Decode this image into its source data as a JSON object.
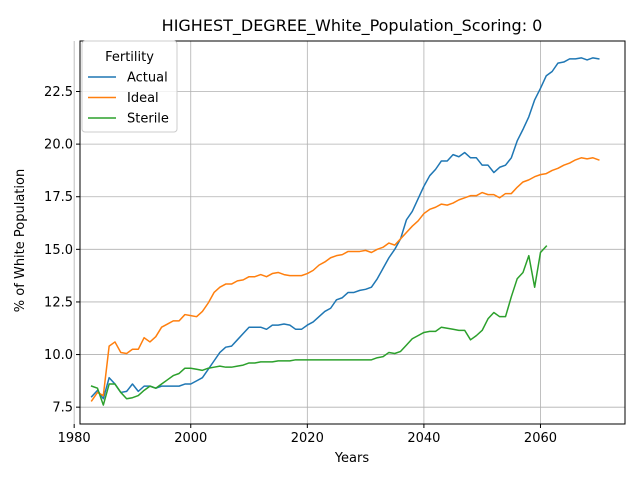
{
  "chart_data": {
    "type": "line",
    "title": "HIGHEST_DEGREE_White_Population_Scoring: 0",
    "xlabel": "Years",
    "ylabel": "% of White Population",
    "xlim": [
      1981,
      2074.5
    ],
    "ylim": [
      6.7,
      24.9
    ],
    "xticks": [
      1980,
      2000,
      2020,
      2040,
      2060
    ],
    "yticks": [
      7.5,
      10.0,
      12.5,
      15.0,
      17.5,
      20.0,
      22.5
    ],
    "xtick_labels": [
      "1980",
      "2000",
      "2020",
      "2040",
      "2060"
    ],
    "ytick_labels": [
      "7.5",
      "10.0",
      "12.5",
      "15.0",
      "17.5",
      "20.0",
      "22.5"
    ],
    "grid": true,
    "legend": {
      "title": "Fertility",
      "position": "top-left"
    },
    "series": [
      {
        "name": "Actual",
        "color": "#1f77b4",
        "x": [
          1983,
          1984,
          1985,
          1986,
          1987,
          1988,
          1989,
          1990,
          1991,
          1992,
          1993,
          1994,
          1995,
          1996,
          1997,
          1998,
          1999,
          2000,
          2001,
          2002,
          2003,
          2004,
          2005,
          2006,
          2007,
          2008,
          2009,
          2010,
          2011,
          2012,
          2013,
          2014,
          2015,
          2016,
          2017,
          2018,
          2019,
          2020,
          2021,
          2022,
          2023,
          2024,
          2025,
          2026,
          2027,
          2028,
          2029,
          2030,
          2031,
          2032,
          2033,
          2034,
          2035,
          2036,
          2037,
          2038,
          2039,
          2040,
          2041,
          2042,
          2043,
          2044,
          2045,
          2046,
          2047,
          2048,
          2049,
          2050,
          2051,
          2052,
          2053,
          2054,
          2055,
          2056,
          2057,
          2058,
          2059,
          2060,
          2061,
          2062,
          2063,
          2064,
          2065,
          2066,
          2067,
          2068,
          2069,
          2070
        ],
        "values": [
          8.0,
          8.3,
          7.9,
          8.9,
          8.6,
          8.2,
          8.25,
          8.6,
          8.25,
          8.5,
          8.5,
          8.4,
          8.5,
          8.5,
          8.5,
          8.5,
          8.6,
          8.6,
          8.75,
          8.9,
          9.3,
          9.7,
          10.1,
          10.35,
          10.4,
          10.7,
          11.0,
          11.3,
          11.3,
          11.3,
          11.2,
          11.4,
          11.4,
          11.45,
          11.4,
          11.2,
          11.2,
          11.4,
          11.55,
          11.8,
          12.05,
          12.2,
          12.6,
          12.7,
          12.95,
          12.95,
          13.05,
          13.1,
          13.2,
          13.6,
          14.1,
          14.6,
          15.0,
          15.5,
          16.4,
          16.8,
          17.4,
          18.0,
          18.5,
          18.8,
          19.2,
          19.2,
          19.5,
          19.4,
          19.6,
          19.35,
          19.35,
          19.0,
          19.0,
          18.65,
          18.9,
          19.0,
          19.35,
          20.15,
          20.7,
          21.3,
          22.1,
          22.65,
          23.25,
          23.45,
          23.85,
          23.9,
          24.05,
          24.05,
          24.1,
          24.0,
          24.1,
          24.05
        ]
      },
      {
        "name": "Ideal",
        "color": "#ff7f0e",
        "x": [
          1983,
          1984,
          1985,
          1986,
          1987,
          1988,
          1989,
          1990,
          1991,
          1992,
          1993,
          1994,
          1995,
          1996,
          1997,
          1998,
          1999,
          2000,
          2001,
          2002,
          2003,
          2004,
          2005,
          2006,
          2007,
          2008,
          2009,
          2010,
          2011,
          2012,
          2013,
          2014,
          2015,
          2016,
          2017,
          2018,
          2019,
          2020,
          2021,
          2022,
          2023,
          2024,
          2025,
          2026,
          2027,
          2028,
          2029,
          2030,
          2031,
          2032,
          2033,
          2034,
          2035,
          2036,
          2037,
          2038,
          2039,
          2040,
          2041,
          2042,
          2043,
          2044,
          2045,
          2046,
          2047,
          2048,
          2049,
          2050,
          2051,
          2052,
          2053,
          2054,
          2055,
          2056,
          2057,
          2058,
          2059,
          2060,
          2061,
          2062,
          2063,
          2064,
          2065,
          2066,
          2067,
          2068,
          2069,
          2070
        ],
        "values": [
          7.8,
          8.2,
          8.05,
          10.4,
          10.6,
          10.1,
          10.05,
          10.25,
          10.25,
          10.8,
          10.6,
          10.85,
          11.3,
          11.45,
          11.6,
          11.6,
          11.9,
          11.85,
          11.8,
          12.05,
          12.45,
          12.95,
          13.2,
          13.35,
          13.35,
          13.5,
          13.55,
          13.7,
          13.7,
          13.8,
          13.7,
          13.85,
          13.9,
          13.8,
          13.75,
          13.75,
          13.75,
          13.85,
          14.0,
          14.25,
          14.4,
          14.6,
          14.7,
          14.75,
          14.9,
          14.9,
          14.9,
          14.95,
          14.85,
          15.0,
          15.1,
          15.3,
          15.2,
          15.5,
          15.8,
          16.1,
          16.35,
          16.7,
          16.9,
          17.0,
          17.15,
          17.1,
          17.2,
          17.35,
          17.45,
          17.55,
          17.55,
          17.7,
          17.6,
          17.6,
          17.45,
          17.65,
          17.65,
          17.95,
          18.2,
          18.3,
          18.45,
          18.55,
          18.6,
          18.75,
          18.85,
          19.0,
          19.1,
          19.25,
          19.35,
          19.3,
          19.35,
          19.25
        ]
      },
      {
        "name": "Sterile",
        "color": "#2ca02c",
        "x": [
          1983,
          1984,
          1985,
          1986,
          1987,
          1988,
          1989,
          1990,
          1991,
          1992,
          1993,
          1994,
          1995,
          1996,
          1997,
          1998,
          1999,
          2000,
          2001,
          2002,
          2003,
          2004,
          2005,
          2006,
          2007,
          2008,
          2009,
          2010,
          2011,
          2012,
          2013,
          2014,
          2015,
          2016,
          2017,
          2018,
          2019,
          2020,
          2021,
          2022,
          2023,
          2024,
          2025,
          2026,
          2027,
          2028,
          2029,
          2030,
          2031,
          2032,
          2033,
          2034,
          2035,
          2036,
          2037,
          2038,
          2039,
          2040,
          2041,
          2042,
          2043,
          2044,
          2045,
          2046,
          2047,
          2048,
          2049,
          2050,
          2051,
          2052,
          2053,
          2054,
          2055,
          2056,
          2057,
          2058,
          2059,
          2060,
          2061
        ],
        "values": [
          8.5,
          8.4,
          7.6,
          8.6,
          8.6,
          8.2,
          7.9,
          7.95,
          8.05,
          8.3,
          8.5,
          8.4,
          8.6,
          8.8,
          9.0,
          9.1,
          9.35,
          9.35,
          9.3,
          9.25,
          9.35,
          9.4,
          9.45,
          9.4,
          9.4,
          9.45,
          9.5,
          9.6,
          9.6,
          9.65,
          9.65,
          9.65,
          9.7,
          9.7,
          9.7,
          9.75,
          9.75,
          9.75,
          9.75,
          9.75,
          9.75,
          9.75,
          9.75,
          9.75,
          9.75,
          9.75,
          9.75,
          9.75,
          9.75,
          9.85,
          9.9,
          10.1,
          10.05,
          10.15,
          10.45,
          10.75,
          10.9,
          11.05,
          11.1,
          11.1,
          11.3,
          11.25,
          11.2,
          11.15,
          11.15,
          10.7,
          10.9,
          11.15,
          11.7,
          12.0,
          11.8,
          11.8,
          12.75,
          13.6,
          13.9,
          14.7,
          13.2,
          14.85,
          15.15
        ]
      }
    ]
  }
}
